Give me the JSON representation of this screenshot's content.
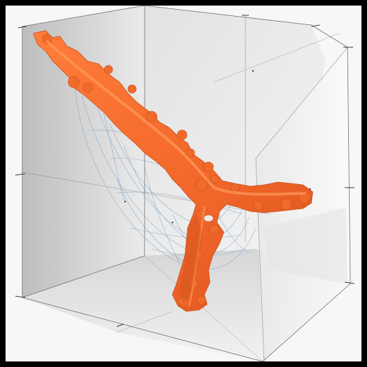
{
  "scene": {
    "subject": "orange-branching-structure",
    "colors": {
      "background": "#f7f7f7",
      "frame": "#000000",
      "box_wall_left": "#d9d9d9",
      "box_wall_back": "#ececec",
      "box_floor": "#e6e6e6",
      "panel": "#f2f2f2",
      "edge_lines": "#6e6e6e",
      "mesh": "#7fa6c9",
      "structure": "#f06a2a",
      "structure_shadow": "#c94f1a",
      "structure_highlight": "#ff8a4a"
    }
  }
}
